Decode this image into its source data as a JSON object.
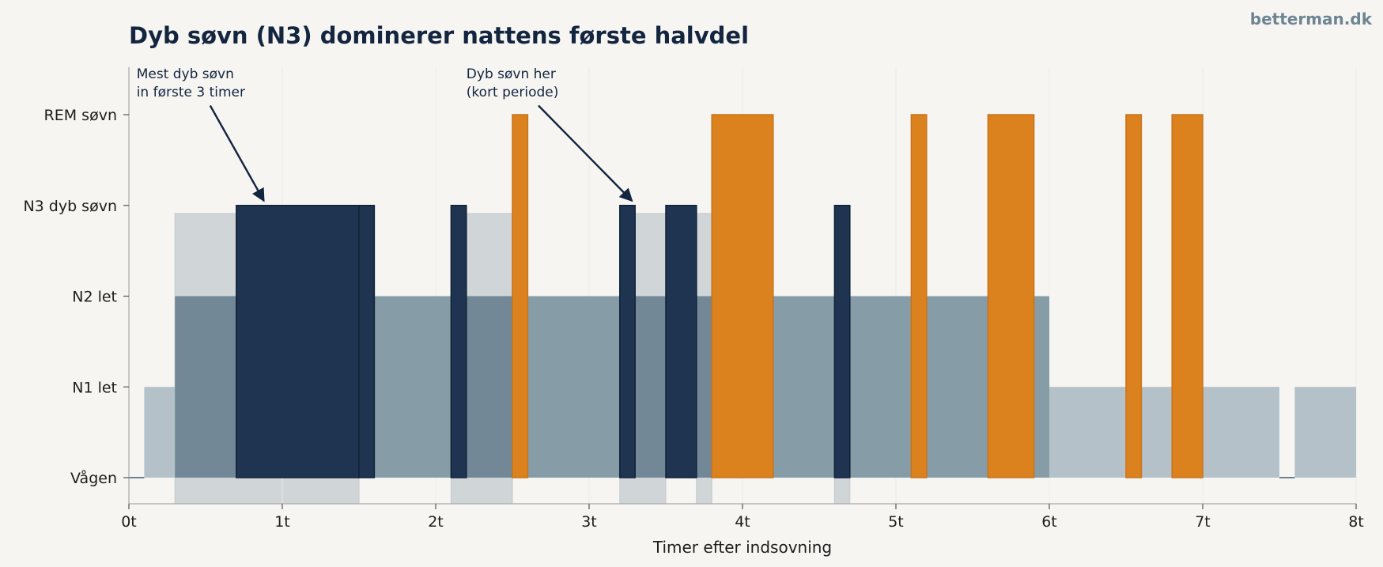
{
  "title": "Dyb søvn (N3) dominerer nattens første halvdel",
  "watermark": "betterman.dk",
  "colors": {
    "background": "#f6f5f2",
    "awake_line": "#6d8593",
    "n1": "#b4c1c8",
    "n2_light": "#869ca7",
    "n2_dark": "#728896",
    "n3": "#1f3450",
    "rem": "#db821f",
    "band": "#d0d5d8",
    "text": "#13253f"
  },
  "chart_data": {
    "type": "area",
    "title": "Dyb søvn (N3) dominerer nattens første halvdel",
    "xlabel": "Timer efter indsovning",
    "ylabel": "",
    "xlim": [
      0,
      8
    ],
    "xticks": [
      {
        "value": 0,
        "label": "0t"
      },
      {
        "value": 1,
        "label": "1t"
      },
      {
        "value": 2,
        "label": "2t"
      },
      {
        "value": 3,
        "label": "3t"
      },
      {
        "value": 4,
        "label": "4t"
      },
      {
        "value": 5,
        "label": "5t"
      },
      {
        "value": 6,
        "label": "6t"
      },
      {
        "value": 7,
        "label": "7t"
      },
      {
        "value": 8,
        "label": "8t"
      }
    ],
    "yticks": [
      {
        "level": 0,
        "label": "Vågen"
      },
      {
        "level": 1,
        "label": "N1 let"
      },
      {
        "level": 2,
        "label": "N2 let"
      },
      {
        "level": 3,
        "label": "N3 dyb søvn"
      },
      {
        "level": 4,
        "label": "REM søvn"
      }
    ],
    "grid": "vertical",
    "deep_sleep_bands": [
      {
        "start": 0.3,
        "end": 1.5
      },
      {
        "start": 2.1,
        "end": 2.5
      },
      {
        "start": 3.2,
        "end": 3.5
      },
      {
        "start": 3.7,
        "end": 3.8
      },
      {
        "start": 4.6,
        "end": 4.7
      }
    ],
    "hypnogram": [
      {
        "start": 0.0,
        "end": 0.1,
        "stage": 0,
        "shade": "awake"
      },
      {
        "start": 0.1,
        "end": 0.3,
        "stage": 1,
        "shade": "n1"
      },
      {
        "start": 0.3,
        "end": 0.7,
        "stage": 2,
        "shade": "n2_dark"
      },
      {
        "start": 0.7,
        "end": 1.5,
        "stage": 3,
        "shade": "n3"
      },
      {
        "start": 1.5,
        "end": 1.6,
        "stage": 3,
        "shade": "n3"
      },
      {
        "start": 1.6,
        "end": 2.1,
        "stage": 2,
        "shade": "n2_light"
      },
      {
        "start": 2.1,
        "end": 2.2,
        "stage": 3,
        "shade": "n3"
      },
      {
        "start": 2.2,
        "end": 2.5,
        "stage": 2,
        "shade": "n2_dark"
      },
      {
        "start": 2.5,
        "end": 2.6,
        "stage": 4,
        "shade": "rem"
      },
      {
        "start": 2.6,
        "end": 3.2,
        "stage": 2,
        "shade": "n2_light"
      },
      {
        "start": 3.2,
        "end": 3.3,
        "stage": 3,
        "shade": "n3"
      },
      {
        "start": 3.3,
        "end": 3.5,
        "stage": 2,
        "shade": "n2_dark"
      },
      {
        "start": 3.5,
        "end": 3.7,
        "stage": 3,
        "shade": "n3"
      },
      {
        "start": 3.7,
        "end": 3.8,
        "stage": 2,
        "shade": "n2_dark"
      },
      {
        "start": 3.8,
        "end": 4.2,
        "stage": 4,
        "shade": "rem"
      },
      {
        "start": 4.2,
        "end": 4.6,
        "stage": 2,
        "shade": "n2_light"
      },
      {
        "start": 4.6,
        "end": 4.7,
        "stage": 3,
        "shade": "n3"
      },
      {
        "start": 4.7,
        "end": 5.1,
        "stage": 2,
        "shade": "n2_light"
      },
      {
        "start": 5.1,
        "end": 5.2,
        "stage": 4,
        "shade": "rem"
      },
      {
        "start": 5.2,
        "end": 5.6,
        "stage": 2,
        "shade": "n2_light"
      },
      {
        "start": 5.6,
        "end": 5.9,
        "stage": 4,
        "shade": "rem"
      },
      {
        "start": 5.9,
        "end": 6.0,
        "stage": 2,
        "shade": "n2_light"
      },
      {
        "start": 6.0,
        "end": 6.5,
        "stage": 1,
        "shade": "n1"
      },
      {
        "start": 6.5,
        "end": 6.6,
        "stage": 4,
        "shade": "rem"
      },
      {
        "start": 6.6,
        "end": 6.8,
        "stage": 1,
        "shade": "n1"
      },
      {
        "start": 6.8,
        "end": 7.0,
        "stage": 4,
        "shade": "rem"
      },
      {
        "start": 7.0,
        "end": 7.5,
        "stage": 1,
        "shade": "n1"
      },
      {
        "start": 7.5,
        "end": 7.6,
        "stage": 0,
        "shade": "awake"
      },
      {
        "start": 7.6,
        "end": 8.0,
        "stage": 1,
        "shade": "n1"
      }
    ],
    "annotations": [
      {
        "lines": [
          "Mest dyb søvn",
          "in første 3 timer"
        ],
        "text_x": 0.05,
        "text_y": 4.45,
        "tail": [
          0.53,
          4.1
        ],
        "head": [
          0.88,
          3.05
        ]
      },
      {
        "lines": [
          "Dyb søvn her",
          "(kort periode)"
        ],
        "text_x": 2.2,
        "text_y": 4.45,
        "tail": [
          2.67,
          4.1
        ],
        "head": [
          3.28,
          3.05
        ]
      }
    ]
  }
}
